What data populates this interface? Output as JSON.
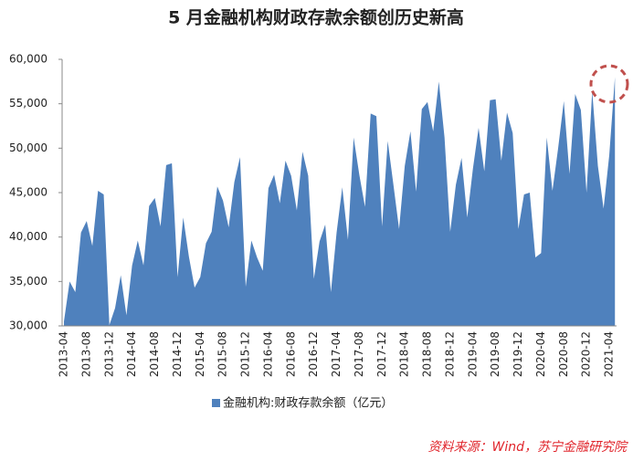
{
  "chart_data": {
    "type": "area",
    "title": "5 月金融机构财政存款余额创历史新高",
    "source": "资料来源：Wind，苏宁金融研究院",
    "categories": [
      "2013-04",
      null,
      null,
      null,
      "2013-08",
      null,
      null,
      null,
      "2013-12",
      null,
      null,
      null,
      "2014-04",
      null,
      null,
      null,
      "2014-08",
      null,
      null,
      null,
      "2014-12",
      null,
      null,
      null,
      "2015-04",
      null,
      null,
      null,
      "2015-08",
      null,
      null,
      null,
      "2015-12",
      null,
      null,
      null,
      "2016-04",
      null,
      null,
      null,
      "2016-08",
      null,
      null,
      null,
      "2016-12",
      null,
      null,
      null,
      "2017-04",
      null,
      null,
      null,
      "2017-08",
      null,
      null,
      null,
      "2017-12",
      null,
      null,
      null,
      "2018-04",
      null,
      null,
      null,
      "2018-08",
      null,
      null,
      null,
      "2018-12",
      null,
      null,
      null,
      "2019-04",
      null,
      null,
      null,
      "2019-08",
      null,
      null,
      null,
      "2019-12",
      null,
      null,
      null,
      "2020-04",
      null,
      null,
      null,
      "2020-08",
      null,
      null,
      null,
      "2020-12",
      null,
      null,
      null,
      "2021-04",
      null
    ],
    "series": [
      {
        "name": "金融机构:财政存款余额（亿元）",
        "color": "#4f81bd",
        "values": [
          30500,
          35000,
          33800,
          40500,
          41800,
          39000,
          45200,
          44800,
          30100,
          32000,
          35700,
          31200,
          36800,
          39600,
          36800,
          43500,
          44400,
          41200,
          48100,
          48300,
          35500,
          42200,
          37800,
          34300,
          35500,
          39300,
          40600,
          45700,
          44100,
          41100,
          46200,
          49000,
          34400,
          39600,
          37700,
          36200,
          45500,
          47000,
          43800,
          48600,
          46900,
          43000,
          49600,
          46900,
          35300,
          39500,
          41400,
          33800,
          40500,
          45600,
          39700,
          51200,
          47000,
          43400,
          53900,
          53600,
          41200,
          50800,
          45900,
          40900,
          48000,
          51900,
          45100,
          54400,
          55200,
          51900,
          57500,
          51200,
          40600,
          45900,
          48900,
          42200,
          47700,
          52300,
          47400,
          55400,
          55500,
          48600,
          54000,
          51700,
          40900,
          44800,
          45000,
          37700,
          38200,
          51200,
          45200,
          50000,
          55300,
          47100,
          56100,
          54300,
          45000,
          56400,
          48000,
          43200,
          49200,
          58000
        ]
      }
    ],
    "ylim": [
      30000,
      60000
    ],
    "yticks": [
      {
        "value": 30000,
        "label": "30,000"
      },
      {
        "value": 35000,
        "label": "35,000"
      },
      {
        "value": 40000,
        "label": "40,000"
      },
      {
        "value": 45000,
        "label": "45,000"
      },
      {
        "value": 50000,
        "label": "50,000"
      },
      {
        "value": 55000,
        "label": "55,000"
      },
      {
        "value": 60000,
        "label": "60,000"
      }
    ],
    "grid": false
  }
}
